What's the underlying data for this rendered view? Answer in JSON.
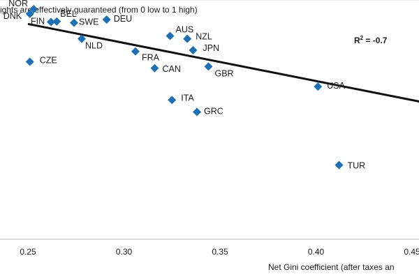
{
  "chart_data": {
    "type": "scatter",
    "ylabel": "ights are effectively guaranteed (from 0 low to 1 high)",
    "xlabel": "Net Gini coefficient (after taxes an",
    "x_ticks": [
      "0.25",
      "0.30",
      "0.35",
      "0.40",
      "0.45"
    ],
    "x_tick_values": [
      0.25,
      0.3,
      0.35,
      0.4,
      0.45
    ],
    "xlim": [
      0.23,
      0.47
    ],
    "ylim": [
      0.0,
      1.0
    ],
    "grid": false,
    "annotation": {
      "text": "R",
      "sup": "2",
      "suffix": " = -0.7"
    },
    "marker_color": "#1f6fb5",
    "trend_color": "#111111",
    "trendline": {
      "x": [
        0.25,
        0.47
      ],
      "y": [
        0.9,
        0.55
      ]
    },
    "points": [
      {
        "label": "NOR",
        "x": 0.253,
        "y": 0.962
      },
      {
        "label": "DNK",
        "x": 0.251,
        "y": 0.942
      },
      {
        "label": "BEL",
        "x": 0.265,
        "y": 0.91
      },
      {
        "label": "FIN",
        "x": 0.262,
        "y": 0.908
      },
      {
        "label": "SWE",
        "x": 0.274,
        "y": 0.905
      },
      {
        "label": "DEU",
        "x": 0.291,
        "y": 0.918
      },
      {
        "label": "AUS",
        "x": 0.324,
        "y": 0.85
      },
      {
        "label": "NZL",
        "x": 0.333,
        "y": 0.838
      },
      {
        "label": "NLD",
        "x": 0.278,
        "y": 0.838
      },
      {
        "label": "JPN",
        "x": 0.336,
        "y": 0.79
      },
      {
        "label": "FRA",
        "x": 0.306,
        "y": 0.785
      },
      {
        "label": "CZE",
        "x": 0.251,
        "y": 0.742
      },
      {
        "label": "CAN",
        "x": 0.316,
        "y": 0.715
      },
      {
        "label": "GBR",
        "x": 0.344,
        "y": 0.722
      },
      {
        "label": "USA",
        "x": 0.401,
        "y": 0.638
      },
      {
        "label": "ITA",
        "x": 0.325,
        "y": 0.582
      },
      {
        "label": "GRC",
        "x": 0.338,
        "y": 0.532
      },
      {
        "label": "TUR",
        "x": 0.412,
        "y": 0.31
      }
    ]
  }
}
